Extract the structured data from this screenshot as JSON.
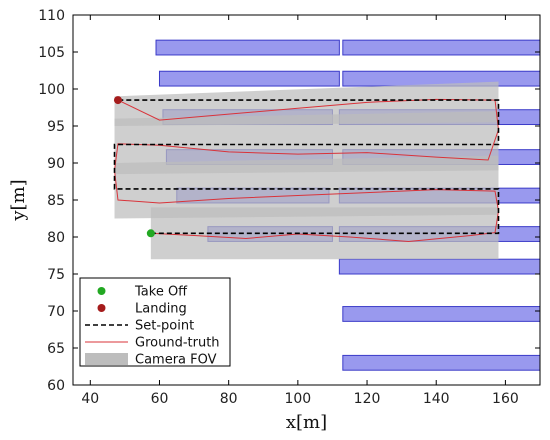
{
  "chart_data": {
    "type": "scatter",
    "xlabel": "x[m]",
    "ylabel": "y[m]",
    "xlim": [
      35,
      170
    ],
    "ylim": [
      60,
      110
    ],
    "xticks": [
      40,
      60,
      80,
      100,
      120,
      140,
      160
    ],
    "yticks": [
      60,
      65,
      70,
      75,
      80,
      85,
      90,
      95,
      100,
      105,
      110
    ],
    "grid": false,
    "legend_position": "bottom-left",
    "legend": [
      {
        "key": "takeoff",
        "label": "Take Off"
      },
      {
        "key": "landing",
        "label": "Landing"
      },
      {
        "key": "setpoint",
        "label": "Set-point"
      },
      {
        "key": "groundtruth",
        "label": "Ground-truth"
      },
      {
        "key": "fov",
        "label": "Camera FOV"
      }
    ],
    "takeoff": {
      "x": 57.5,
      "y": 80.5
    },
    "landing": {
      "x": 48,
      "y": 98.5
    },
    "setpoint": {
      "x": [
        57.5,
        158,
        158,
        47,
        47,
        158,
        158,
        48,
        48
      ],
      "y": [
        80.5,
        80.5,
        86.5,
        86.5,
        92.5,
        92.5,
        98.5,
        98.5,
        98.5
      ]
    },
    "groundtruth": {
      "x": [
        57.5,
        70,
        85,
        100,
        115,
        132,
        150,
        157,
        158,
        157,
        140,
        120,
        100,
        80,
        60,
        48,
        47,
        48,
        60,
        80,
        100,
        120,
        140,
        155,
        158,
        157,
        140,
        120,
        100,
        80,
        60,
        48
      ],
      "y": [
        80.5,
        80.2,
        79.8,
        80.4,
        80.0,
        79.4,
        80.2,
        80.6,
        83.5,
        86.2,
        86.4,
        86.0,
        85.6,
        85.2,
        84.6,
        85.0,
        89.0,
        92.6,
        92.4,
        91.5,
        91.2,
        91.4,
        90.8,
        90.4,
        94.5,
        98.5,
        98.6,
        98.2,
        97.4,
        96.6,
        95.8,
        98.5
      ]
    },
    "fov": {
      "bands": [
        {
          "x": [
            57.5,
            158
          ],
          "lower": [
            77.0,
            77.0
          ],
          "upper": [
            84.0,
            84.0
          ]
        },
        {
          "x": [
            47,
            158
          ],
          "lower": [
            82.5,
            83.0
          ],
          "upper": [
            90.0,
            91.0
          ]
        },
        {
          "x": [
            47,
            158
          ],
          "lower": [
            88.5,
            89.0
          ],
          "upper": [
            96.0,
            97.0
          ]
        },
        {
          "x": [
            47,
            158
          ],
          "lower": [
            95.0,
            95.5
          ],
          "upper": [
            99.0,
            101.0
          ]
        }
      ]
    },
    "rectangles": [
      {
        "x0": 59,
        "x1": 112,
        "y0": 104.6,
        "y1": 106.6
      },
      {
        "x0": 113,
        "x1": 170,
        "y0": 104.6,
        "y1": 106.6
      },
      {
        "x0": 60,
        "x1": 112,
        "y0": 100.4,
        "y1": 102.4
      },
      {
        "x0": 113,
        "x1": 170,
        "y0": 100.4,
        "y1": 102.4
      },
      {
        "x0": 61,
        "x1": 110,
        "y0": 95.2,
        "y1": 97.2
      },
      {
        "x0": 112,
        "x1": 170,
        "y0": 95.2,
        "y1": 97.2
      },
      {
        "x0": 62,
        "x1": 110,
        "y0": 89.8,
        "y1": 91.8
      },
      {
        "x0": 113,
        "x1": 170,
        "y0": 89.8,
        "y1": 91.8
      },
      {
        "x0": 65,
        "x1": 109,
        "y0": 84.6,
        "y1": 86.6
      },
      {
        "x0": 112,
        "x1": 170,
        "y0": 84.6,
        "y1": 86.6
      },
      {
        "x0": 74,
        "x1": 110,
        "y0": 79.4,
        "y1": 81.4
      },
      {
        "x0": 112,
        "x1": 170,
        "y0": 79.4,
        "y1": 81.4
      },
      {
        "x0": 112,
        "x1": 170,
        "y0": 75.0,
        "y1": 77.0
      },
      {
        "x0": 113,
        "x1": 170,
        "y0": 68.6,
        "y1": 70.6
      },
      {
        "x0": 113,
        "x1": 170,
        "y0": 62.0,
        "y1": 64.0
      }
    ],
    "colors": {
      "rect_fill": "#9999ee",
      "rect_stroke": "#3a3ac8",
      "fov": "#bdbdbd",
      "setpoint": "#000000",
      "groundtruth": "#d9333a",
      "takeoff": "#22a822",
      "landing": "#a51c1c"
    }
  }
}
